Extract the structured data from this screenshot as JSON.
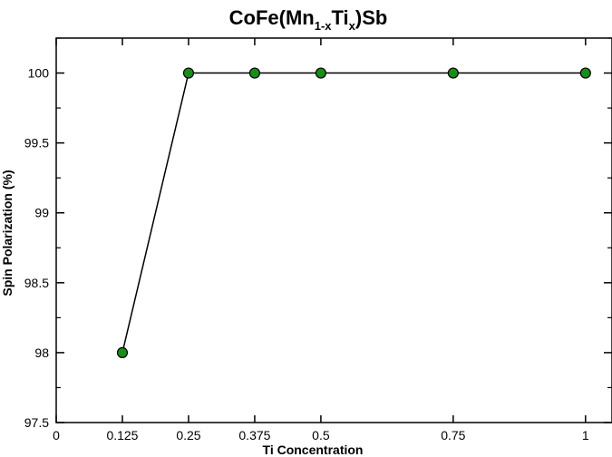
{
  "chart_data": {
    "type": "line",
    "title": {
      "parts": [
        {
          "text": "CoFe(Mn",
          "sub": false
        },
        {
          "text": "1-x",
          "sub": true
        },
        {
          "text": "Ti",
          "sub": false
        },
        {
          "text": "x",
          "sub": true
        },
        {
          "text": ")Sb",
          "sub": false
        }
      ]
    },
    "xlabel": "Ti Concentration",
    "ylabel": "Spin Polarization (%)",
    "xlim": [
      0,
      1.05
    ],
    "ylim": [
      97.5,
      100.25
    ],
    "xticks": [
      {
        "value": 0,
        "label": "0"
      },
      {
        "value": 0.125,
        "label": "0.125"
      },
      {
        "value": 0.25,
        "label": "0.25"
      },
      {
        "value": 0.375,
        "label": "0.375"
      },
      {
        "value": 0.5,
        "label": "0.5"
      },
      {
        "value": 0.75,
        "label": "0.75"
      },
      {
        "value": 1,
        "label": "1"
      }
    ],
    "yticks": [
      {
        "value": 97.5,
        "label": "97.5"
      },
      {
        "value": 98,
        "label": "98"
      },
      {
        "value": 98.5,
        "label": "98.5"
      },
      {
        "value": 99,
        "label": "99"
      },
      {
        "value": 99.5,
        "label": "99.5"
      },
      {
        "value": 100,
        "label": "100"
      }
    ],
    "series": [
      {
        "x": [
          0.125,
          0.25,
          0.375,
          0.5,
          0.75,
          1
        ],
        "y": [
          98,
          100,
          100,
          100,
          100,
          100
        ],
        "line_color": "#000000",
        "marker_color": "#1a8c1a",
        "marker": "circle"
      }
    ],
    "grid": false,
    "legend": "none"
  }
}
